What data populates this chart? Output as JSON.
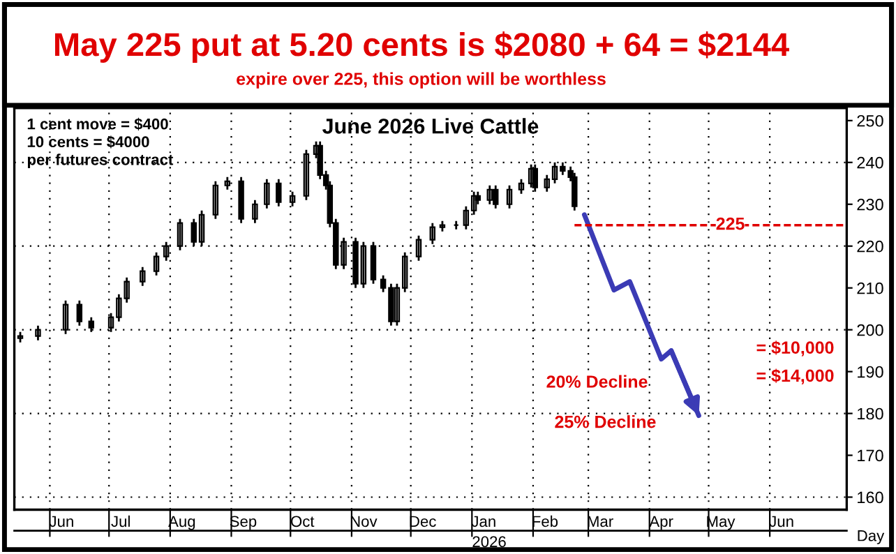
{
  "chart_data": {
    "type": "candlestick",
    "title": "May 225 put at 5.20 cents is $2080 + 64 = $2144",
    "subtitle": "expire over 225, this option will be worthless",
    "xlabel": "Day",
    "x": [
      "2025-05-17",
      "2025-05-26",
      "2025-06-09",
      "2025-06-16",
      "2025-06-22",
      "2025-07-02",
      "2025-07-06",
      "2025-07-10",
      "2025-07-18",
      "2025-07-25",
      "2025-07-30",
      "2025-08-06",
      "2025-08-13",
      "2025-08-17",
      "2025-08-24",
      "2025-08-30",
      "2025-09-06",
      "2025-09-13",
      "2025-09-19",
      "2025-09-25",
      "2025-10-02",
      "2025-10-09",
      "2025-10-14",
      "2025-10-16",
      "2025-10-19",
      "2025-10-21",
      "2025-10-24",
      "2025-10-28",
      "2025-11-03",
      "2025-11-07",
      "2025-11-12",
      "2025-11-17",
      "2025-11-21",
      "2025-11-24",
      "2025-11-28",
      "2025-12-05",
      "2025-12-12",
      "2025-12-17",
      "2025-12-24",
      "2025-12-29",
      "2026-01-02",
      "2026-01-04",
      "2026-01-10",
      "2026-01-13",
      "2026-01-20",
      "2026-01-26",
      "2026-01-31",
      "2026-02-02",
      "2026-02-08",
      "2026-02-12",
      "2026-02-16",
      "2026-02-20",
      "2026-02-22"
    ],
    "ohlc": [
      [
        198,
        199.5,
        197,
        198.5
      ],
      [
        198.5,
        201,
        197.5,
        200
      ],
      [
        200,
        207,
        199,
        206
      ],
      [
        206,
        207,
        201,
        202
      ],
      [
        202,
        203,
        199.5,
        200.5
      ],
      [
        200.5,
        204,
        199.5,
        203
      ],
      [
        203,
        208.5,
        202,
        207.5
      ],
      [
        207.5,
        212.5,
        206.5,
        211.5
      ],
      [
        211.5,
        215,
        210.5,
        214
      ],
      [
        214,
        218.5,
        213,
        217.5
      ],
      [
        217.5,
        221,
        216.5,
        220
      ],
      [
        220,
        226.5,
        219,
        225.5
      ],
      [
        225.5,
        226.5,
        220,
        221
      ],
      [
        221,
        228.5,
        220,
        227.5
      ],
      [
        227.5,
        235.5,
        226.5,
        234.5
      ],
      [
        234.5,
        236.5,
        233.5,
        235.5
      ],
      [
        235.5,
        236.5,
        225.5,
        226.5
      ],
      [
        226.5,
        231,
        225.5,
        230
      ],
      [
        230,
        236,
        229,
        235
      ],
      [
        235,
        236,
        229.5,
        230.5
      ],
      [
        230.5,
        233,
        229.5,
        232
      ],
      [
        232,
        243,
        231,
        242
      ],
      [
        242,
        245,
        241,
        244
      ],
      [
        244,
        245,
        236,
        237
      ],
      [
        237,
        238,
        233.5,
        234.5
      ],
      [
        234.5,
        235.5,
        224.5,
        225.5
      ],
      [
        225.5,
        226.5,
        214.5,
        215.5
      ],
      [
        215.5,
        222,
        214.5,
        221
      ],
      [
        221,
        222,
        210,
        211
      ],
      [
        211,
        221,
        210,
        220
      ],
      [
        220,
        221,
        211,
        212
      ],
      [
        212,
        213,
        209,
        210
      ],
      [
        210,
        211,
        201,
        202
      ],
      [
        202,
        211,
        201,
        210
      ],
      [
        210,
        218.5,
        209,
        217.5
      ],
      [
        217.5,
        222.5,
        216.5,
        221.5
      ],
      [
        221.5,
        225.5,
        220.5,
        224.5
      ],
      [
        224.5,
        226,
        223.5,
        225
      ],
      [
        225,
        226,
        224,
        225
      ],
      [
        225,
        229.5,
        224,
        228.5
      ],
      [
        228.5,
        233,
        227.5,
        232
      ],
      [
        232,
        233,
        230,
        231
      ],
      [
        231,
        234.5,
        230,
        233.5
      ],
      [
        233.5,
        234.5,
        229,
        230
      ],
      [
        230,
        234.5,
        229,
        233.5
      ],
      [
        233.5,
        236,
        232.5,
        235
      ],
      [
        235,
        239.5,
        234,
        238.5
      ],
      [
        238.5,
        239.5,
        233,
        234
      ],
      [
        234,
        237,
        233,
        236
      ],
      [
        236,
        240,
        235,
        239
      ],
      [
        239,
        240,
        237,
        238
      ],
      [
        238,
        239,
        235.5,
        236.5
      ],
      [
        236.5,
        237.5,
        228.5,
        229.5
      ]
    ],
    "color": "#000000",
    "series": [
      {
        "type": "line",
        "color": "#3b3bb5",
        "x": [
          "2026-02-27",
          "2026-03-14",
          "2026-03-22",
          "2026-04-07",
          "2026-04-12",
          "2026-04-26"
        ],
        "values": [
          227.5,
          209.5,
          211.5,
          193,
          195,
          179.5
        ]
      }
    ],
    "ref_lines": [
      {
        "axis": "y",
        "value": 225,
        "label": "225",
        "color": "#e00000",
        "line_style": "dashed"
      }
    ],
    "annotations": [
      "June 2026 Live Cattle",
      "1 cent move = $400\n10 cents = $4000\nper futures contract",
      "2026",
      "= $10,000",
      "= $14,000",
      "20% Decline",
      "25% Decline"
    ],
    "xlim": [
      "2025-05-14",
      "2026-07-10"
    ],
    "xticks": [
      {
        "value": "2025-06-01",
        "label": null
      },
      {
        "value": "2025-07-01",
        "label": null
      },
      {
        "value": "2025-08-01",
        "label": null
      },
      {
        "value": "2025-09-01",
        "label": null
      },
      {
        "value": "2025-10-01",
        "label": null
      },
      {
        "value": "2025-11-01",
        "label": null
      },
      {
        "value": "2025-12-01",
        "label": null
      },
      {
        "value": "2026-01-01",
        "label": null
      },
      {
        "value": "2026-02-01",
        "label": null
      },
      {
        "value": "2026-03-01",
        "label": null
      },
      {
        "value": "2026-04-01",
        "label": null
      },
      {
        "value": "2026-05-01",
        "label": null
      },
      {
        "value": "2026-06-01",
        "label": null
      },
      {
        "value": "2025-06-07",
        "label": "Jun"
      },
      {
        "value": "2025-07-07",
        "label": "Jul"
      },
      {
        "value": "2025-08-07",
        "label": "Aug"
      },
      {
        "value": "2025-09-07",
        "label": "Sep"
      },
      {
        "value": "2025-10-07",
        "label": "Oct"
      },
      {
        "value": "2025-11-07",
        "label": "Nov"
      },
      {
        "value": "2025-12-07",
        "label": "Dec"
      },
      {
        "value": "2026-01-07",
        "label": "Jan"
      },
      {
        "value": "2026-02-07",
        "label": "Feb"
      },
      {
        "value": "2026-03-07",
        "label": "Mar"
      },
      {
        "value": "2026-04-07",
        "label": "Apr"
      },
      {
        "value": "2026-05-07",
        "label": "May"
      },
      {
        "value": "2026-06-07",
        "label": "Jun"
      }
    ],
    "ylim": [
      157,
      253
    ],
    "yticks": [
      160,
      170,
      180,
      190,
      200,
      210,
      220,
      230,
      240,
      250
    ],
    "grid": true
  }
}
